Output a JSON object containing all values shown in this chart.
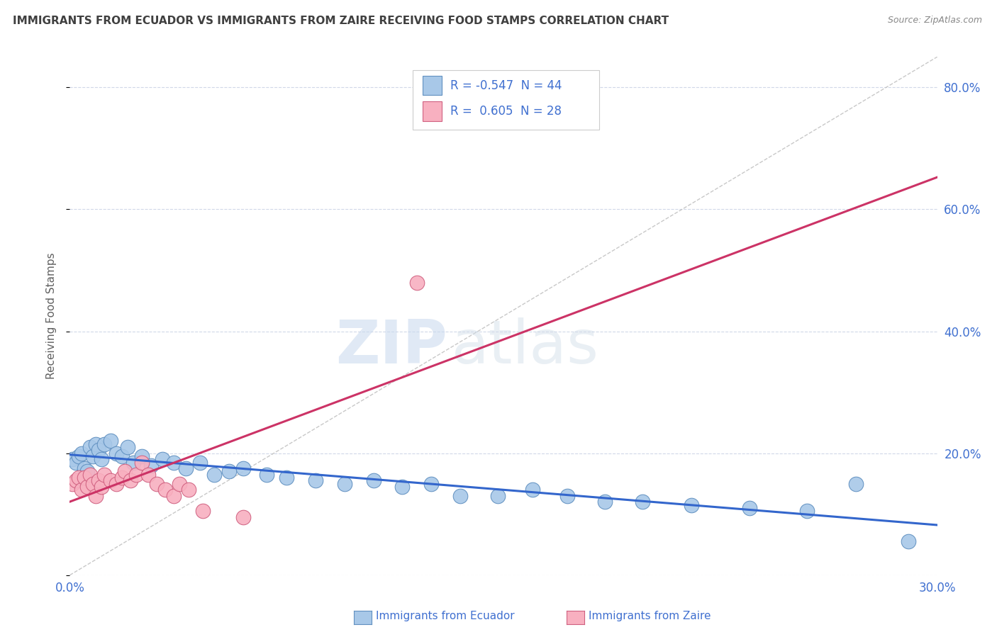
{
  "title": "IMMIGRANTS FROM ECUADOR VS IMMIGRANTS FROM ZAIRE RECEIVING FOOD STAMPS CORRELATION CHART",
  "source": "Source: ZipAtlas.com",
  "ylabel": "Receiving Food Stamps",
  "xlim": [
    0.0,
    0.3
  ],
  "ylim": [
    0.0,
    0.85
  ],
  "xticks": [
    0.0,
    0.05,
    0.1,
    0.15,
    0.2,
    0.25,
    0.3
  ],
  "xtick_labels": [
    "0.0%",
    "",
    "",
    "",
    "",
    "",
    "30.0%"
  ],
  "yticks": [
    0.0,
    0.2,
    0.4,
    0.6,
    0.8
  ],
  "right_ytick_labels": [
    "20.0%",
    "40.0%",
    "60.0%",
    "80.0%"
  ],
  "right_yticks": [
    0.2,
    0.4,
    0.6,
    0.8
  ],
  "ecuador_color": "#a8c8e8",
  "ecuador_edge_color": "#6090c0",
  "zaire_color": "#f8b0c0",
  "zaire_edge_color": "#d06080",
  "ecuador_line_color": "#3366cc",
  "zaire_line_color": "#cc3366",
  "diag_line_color": "#bbbbbb",
  "R_ecuador": -0.547,
  "N_ecuador": 44,
  "R_zaire": 0.605,
  "N_zaire": 28,
  "ecuador_x": [
    0.001,
    0.002,
    0.003,
    0.004,
    0.005,
    0.006,
    0.007,
    0.008,
    0.009,
    0.01,
    0.011,
    0.012,
    0.014,
    0.016,
    0.018,
    0.02,
    0.022,
    0.025,
    0.028,
    0.032,
    0.036,
    0.04,
    0.045,
    0.05,
    0.055,
    0.06,
    0.068,
    0.075,
    0.085,
    0.095,
    0.105,
    0.115,
    0.125,
    0.135,
    0.148,
    0.16,
    0.172,
    0.185,
    0.198,
    0.215,
    0.235,
    0.255,
    0.272,
    0.29
  ],
  "ecuador_y": [
    0.19,
    0.185,
    0.195,
    0.2,
    0.175,
    0.17,
    0.21,
    0.195,
    0.215,
    0.205,
    0.19,
    0.215,
    0.22,
    0.2,
    0.195,
    0.21,
    0.185,
    0.195,
    0.18,
    0.19,
    0.185,
    0.175,
    0.185,
    0.165,
    0.17,
    0.175,
    0.165,
    0.16,
    0.155,
    0.15,
    0.155,
    0.145,
    0.15,
    0.13,
    0.13,
    0.14,
    0.13,
    0.12,
    0.12,
    0.115,
    0.11,
    0.105,
    0.15,
    0.055
  ],
  "zaire_x": [
    0.001,
    0.002,
    0.003,
    0.004,
    0.005,
    0.006,
    0.007,
    0.008,
    0.009,
    0.01,
    0.011,
    0.012,
    0.014,
    0.016,
    0.018,
    0.019,
    0.021,
    0.023,
    0.025,
    0.027,
    0.03,
    0.033,
    0.036,
    0.038,
    0.041,
    0.046,
    0.12,
    0.06
  ],
  "zaire_y": [
    0.15,
    0.155,
    0.16,
    0.14,
    0.16,
    0.145,
    0.165,
    0.15,
    0.13,
    0.155,
    0.145,
    0.165,
    0.155,
    0.15,
    0.16,
    0.17,
    0.155,
    0.165,
    0.185,
    0.165,
    0.15,
    0.14,
    0.13,
    0.15,
    0.14,
    0.105,
    0.48,
    0.095
  ],
  "watermark_zip": "ZIP",
  "watermark_atlas": "atlas",
  "background_color": "#ffffff",
  "grid_color": "#d0d8e8",
  "legend_text_color": "#4070d0",
  "title_color": "#404040",
  "axis_label_color": "#606060"
}
